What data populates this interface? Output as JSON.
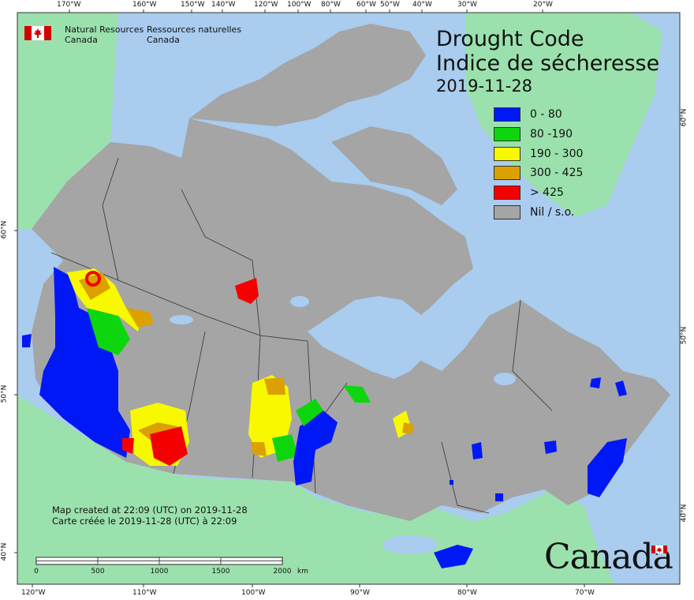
{
  "map": {
    "title_en": "Drought Code",
    "title_fr": "Indice de sécheresse",
    "date": "2019-11-28",
    "org_en": [
      "Natural Resources",
      "Canada"
    ],
    "org_fr": [
      "Ressources naturelles",
      "Canada"
    ],
    "credit_en": "Map created at 22:09 (UTC) on 2019-11-28",
    "credit_fr": "Carte créée le 2019-11-28 (UTC) à 22:09",
    "wordmark": "Canada",
    "legend": [
      {
        "label": "0 - 80",
        "color": "#0018f5"
      },
      {
        "label": "80 -190",
        "color": "#0ed60e"
      },
      {
        "label": "190 - 300",
        "color": "#f8f800"
      },
      {
        "label": "300 - 425",
        "color": "#dca000"
      },
      {
        "label": "> 425",
        "color": "#f50000"
      },
      {
        "label": "Nil / s.o.",
        "color": "#a5a5a5"
      }
    ],
    "colors": {
      "ocean": "#a9ccef",
      "land_other": "#9be1ad",
      "canada": "#a5a5a5",
      "border": "#333333"
    },
    "top_lon_ticks": [
      "170°W",
      "160°W",
      "150°W",
      "140°W",
      "120°W",
      "100°W",
      "80°W",
      "60°W",
      "50°W",
      "40°W",
      "30°W",
      "20°W"
    ],
    "bottom_lon_ticks": [
      "120°W",
      "110°W",
      "100°W",
      "90°W",
      "80°W",
      "70°W"
    ],
    "left_lat_ticks": [
      "60°N",
      "50°N",
      "40°N"
    ],
    "right_lat_ticks": [
      "60°N",
      "50°N",
      "40°N"
    ],
    "scale_bar": {
      "labels": [
        "0",
        "500",
        "1000",
        "1500",
        "2000"
      ],
      "unit": "km"
    }
  }
}
